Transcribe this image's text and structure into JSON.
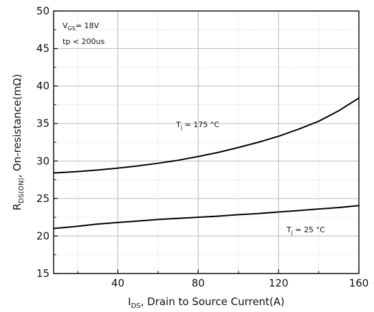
{
  "chart_data": {
    "type": "line",
    "title": "",
    "xlabel": {
      "main": "I",
      "sub": "DS",
      "rest": ", Drain to Source Current(A)"
    },
    "ylabel": {
      "main": "R",
      "sub": "DS(ON)",
      "rest": ", On-resistance(mΩ)"
    },
    "xlim": [
      8,
      160
    ],
    "ylim": [
      15,
      50
    ],
    "x_ticks": [
      40,
      80,
      120,
      160
    ],
    "x_tick_labels": [
      "40",
      "80",
      "120",
      "160"
    ],
    "x_minor_ticks": [
      20,
      60,
      100,
      140
    ],
    "y_ticks": [
      15,
      20,
      25,
      30,
      35,
      40,
      45,
      50
    ],
    "y_tick_labels": [
      "15",
      "20",
      "25",
      "30",
      "35",
      "40",
      "45",
      "50"
    ],
    "y_minor_ticks": [
      17.5,
      22.5,
      27.5,
      32.5,
      37.5,
      42.5,
      47.5
    ],
    "grid": true,
    "series": [
      {
        "name": "Tj = 175 °C",
        "color": "#000000",
        "points": [
          [
            8,
            28.4
          ],
          [
            20,
            28.6
          ],
          [
            30,
            28.8
          ],
          [
            40,
            29.05
          ],
          [
            50,
            29.35
          ],
          [
            60,
            29.7
          ],
          [
            70,
            30.1
          ],
          [
            80,
            30.6
          ],
          [
            90,
            31.15
          ],
          [
            100,
            31.8
          ],
          [
            110,
            32.5
          ],
          [
            120,
            33.3
          ],
          [
            130,
            34.25
          ],
          [
            140,
            35.3
          ],
          [
            150,
            36.7
          ],
          [
            160,
            38.4
          ]
        ]
      },
      {
        "name": "Tj = 25 °C",
        "color": "#000000",
        "points": [
          [
            8,
            21.0
          ],
          [
            20,
            21.3
          ],
          [
            30,
            21.6
          ],
          [
            40,
            21.8
          ],
          [
            50,
            22.0
          ],
          [
            60,
            22.2
          ],
          [
            70,
            22.35
          ],
          [
            80,
            22.5
          ],
          [
            90,
            22.65
          ],
          [
            100,
            22.85
          ],
          [
            110,
            23.0
          ],
          [
            120,
            23.2
          ],
          [
            130,
            23.4
          ],
          [
            140,
            23.6
          ],
          [
            150,
            23.8
          ],
          [
            160,
            24.05
          ]
        ]
      }
    ],
    "annotations": {
      "conditions": {
        "vgs_main": "V",
        "vgs_sub": "GS",
        "vgs_rest": "= 18V",
        "tp": "tp < 200us"
      },
      "label_175": {
        "main": "T",
        "sub": "j",
        "rest": " = 175 °C",
        "x": 69,
        "y": 34.5
      },
      "label_25": {
        "main": "T",
        "sub": "j",
        "rest": " = 25 °C",
        "x": 124,
        "y": 20.5
      }
    }
  }
}
